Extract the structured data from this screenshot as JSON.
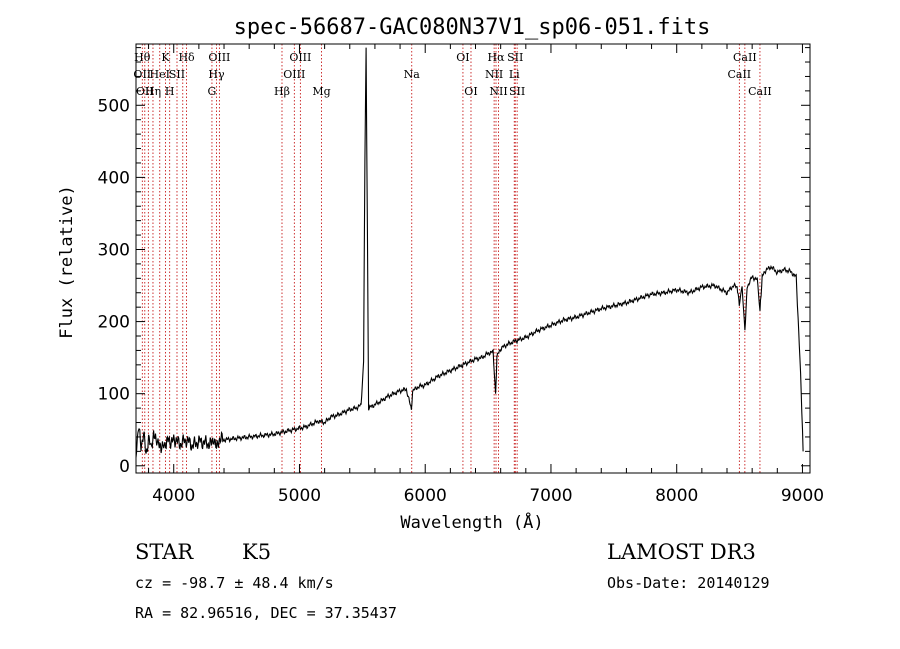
{
  "chart_data": {
    "type": "line",
    "title": "spec-56687-GAC080N37V1_sp06-051.fits",
    "xlabel": "Wavelength (Å)",
    "ylabel": "Flux (relative)",
    "xlim": [
      3700,
      9060
    ],
    "ylim": [
      -10,
      585
    ],
    "xticks": [
      4000,
      5000,
      6000,
      7000,
      8000,
      9000
    ],
    "yticks": [
      0,
      100,
      200,
      300,
      400,
      500
    ],
    "series": [
      {
        "name": "flux",
        "x": [
          3700,
          3720,
          3740,
          3760,
          3780,
          3800,
          3820,
          3840,
          3860,
          3880,
          3900,
          3920,
          3940,
          3960,
          3980,
          4000,
          4050,
          4100,
          4150,
          4200,
          4250,
          4300,
          4320,
          4340,
          4360,
          4400,
          4500,
          4600,
          4700,
          4800,
          4850,
          4900,
          4950,
          5000,
          5050,
          5100,
          5150,
          5200,
          5250,
          5300,
          5350,
          5400,
          5450,
          5490,
          5510,
          5520,
          5530,
          5550,
          5600,
          5650,
          5700,
          5750,
          5800,
          5850,
          5890,
          5900,
          5950,
          6000,
          6050,
          6100,
          6150,
          6200,
          6250,
          6300,
          6350,
          6400,
          6450,
          6500,
          6540,
          6560,
          6570,
          6590,
          6620,
          6650,
          6700,
          6800,
          6900,
          7000,
          7100,
          7200,
          7300,
          7400,
          7500,
          7600,
          7700,
          7800,
          7900,
          8000,
          8100,
          8200,
          8300,
          8400,
          8450,
          8480,
          8498,
          8520,
          8542,
          8560,
          8600,
          8640,
          8662,
          8680,
          8700,
          8750,
          8800,
          8850,
          8900,
          8950,
          8980,
          9000,
          9005
        ],
        "y": [
          20,
          52,
          28,
          45,
          15,
          40,
          22,
          48,
          30,
          38,
          18,
          35,
          25,
          42,
          28,
          38,
          30,
          36,
          28,
          34,
          32,
          30,
          40,
          22,
          38,
          36,
          38,
          40,
          42,
          44,
          46,
          48,
          50,
          52,
          54,
          58,
          62,
          60,
          68,
          70,
          74,
          78,
          80,
          84,
          145,
          420,
          580,
          80,
          85,
          90,
          96,
          100,
          104,
          106,
          78,
          104,
          110,
          112,
          118,
          124,
          128,
          132,
          136,
          140,
          144,
          148,
          150,
          156,
          158,
          100,
          150,
          160,
          165,
          168,
          172,
          178,
          188,
          195,
          202,
          206,
          212,
          218,
          222,
          226,
          232,
          238,
          240,
          244,
          240,
          248,
          250,
          240,
          250,
          248,
          225,
          250,
          185,
          248,
          262,
          258,
          215,
          262,
          270,
          276,
          268,
          272,
          270,
          262,
          150,
          50,
          20
        ]
      }
    ],
    "lines": [
      {
        "x": 3750,
        "lbl": [
          "Hθ",
          "OII"
        ]
      },
      {
        "x": 3770,
        "lbl": [
          "",
          "",
          "OII"
        ]
      },
      {
        "x": 3798,
        "lbl": [
          "",
          "",
          ""
        ]
      },
      {
        "x": 3835,
        "lbl": [
          "",
          "",
          "Hη"
        ]
      },
      {
        "x": 3889,
        "lbl": [
          "",
          "HeI",
          ""
        ]
      },
      {
        "x": 3934,
        "lbl": [
          "K",
          "",
          ""
        ]
      },
      {
        "x": 3968,
        "lbl": [
          "",
          "",
          "H"
        ]
      },
      {
        "x": 4026,
        "lbl": [
          "",
          "SII",
          ""
        ]
      },
      {
        "x": 4072,
        "lbl": [
          "",
          "",
          ""
        ]
      },
      {
        "x": 4102,
        "lbl": [
          "Hδ"
        ]
      },
      {
        "x": 4304,
        "lbl": [
          "",
          "",
          "G"
        ]
      },
      {
        "x": 4340,
        "lbl": [
          "",
          "Hγ"
        ]
      },
      {
        "x": 4363,
        "lbl": [
          "OIII"
        ]
      },
      {
        "x": 4861,
        "lbl": [
          "",
          "",
          "Hβ"
        ]
      },
      {
        "x": 4959,
        "lbl": [
          "",
          "OIII"
        ]
      },
      {
        "x": 5007,
        "lbl": [
          "OIII"
        ]
      },
      {
        "x": 5175,
        "lbl": [
          "",
          "",
          "Mg"
        ]
      },
      {
        "x": 5893,
        "lbl": [
          "",
          "Na"
        ]
      },
      {
        "x": 6300,
        "lbl": [
          "OI"
        ]
      },
      {
        "x": 6364,
        "lbl": [
          "",
          "",
          "OI"
        ]
      },
      {
        "x": 6548,
        "lbl": [
          "",
          "NII"
        ]
      },
      {
        "x": 6563,
        "lbl": [
          "Hα"
        ]
      },
      {
        "x": 6583,
        "lbl": [
          "",
          "",
          "NII"
        ]
      },
      {
        "x": 6708,
        "lbl": [
          "",
          "Li"
        ]
      },
      {
        "x": 6716,
        "lbl": [
          "SII"
        ]
      },
      {
        "x": 6731,
        "lbl": [
          "",
          "",
          "SII"
        ]
      },
      {
        "x": 8498,
        "lbl": [
          "",
          "CaII"
        ]
      },
      {
        "x": 8542,
        "lbl": [
          "CaII"
        ]
      },
      {
        "x": 8662,
        "lbl": [
          "",
          "",
          "CaII"
        ]
      }
    ]
  },
  "info": {
    "object_type": "STAR",
    "subclass": "K5",
    "survey": "LAMOST DR3",
    "cz": "cz = -98.7 ± 48.4 km/s",
    "obs_date": "Obs-Date: 20140129",
    "coords": "RA =  82.96516, DEC =  37.35437"
  }
}
